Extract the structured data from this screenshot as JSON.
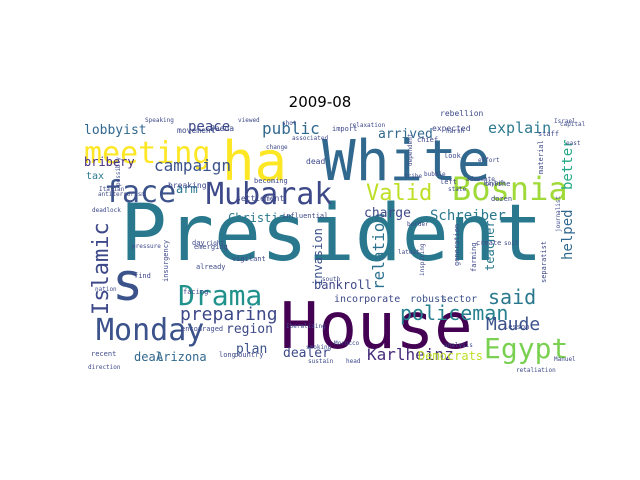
{
  "figure": {
    "title": "2009-08"
  },
  "word_cloud": {
    "colormap": "viridis",
    "words": [
      {
        "text": "President",
        "color": "#2a788e"
      },
      {
        "text": "House",
        "color": "#440154"
      },
      {
        "text": "White",
        "color": "#31688e"
      },
      {
        "text": "ha",
        "color": "#fde725"
      },
      {
        "text": "s",
        "color": "#3b528b"
      },
      {
        "text": "Bosnia",
        "color": "#a0da39"
      },
      {
        "text": "Mubarak",
        "color": "#3e4989"
      },
      {
        "text": "face",
        "color": "#3b528b"
      },
      {
        "text": "meeting",
        "color": "#fde725"
      },
      {
        "text": "Monday",
        "color": "#3b528b"
      },
      {
        "text": "Drama",
        "color": "#21918c"
      },
      {
        "text": "Egypt",
        "color": "#7ad151"
      },
      {
        "text": "Islamic",
        "color": "#3e4989"
      },
      {
        "text": "Valid",
        "color": "#bddf26"
      },
      {
        "text": "policeman",
        "color": "#26828e"
      },
      {
        "text": "said",
        "color": "#2a788e"
      },
      {
        "text": "Maude",
        "color": "#3b528b"
      },
      {
        "text": "preparing",
        "color": "#3e4989"
      },
      {
        "text": "Karlheinz",
        "color": "#472d7b"
      },
      {
        "text": "campaign",
        "color": "#3b528b"
      },
      {
        "text": "public",
        "color": "#31688e"
      },
      {
        "text": "explain",
        "color": "#2a788e"
      },
      {
        "text": "Schreiber",
        "color": "#2a788e"
      },
      {
        "text": "relation",
        "color": "#2c728e"
      },
      {
        "text": "better",
        "color": "#22a884"
      },
      {
        "text": "helped",
        "color": "#31688e"
      },
      {
        "text": "peace",
        "color": "#3e4989"
      },
      {
        "text": "arrived",
        "color": "#31688e"
      },
      {
        "text": "charge",
        "color": "#3e4989"
      },
      {
        "text": "lobbyist",
        "color": "#31688e"
      },
      {
        "text": "bribery",
        "color": "#472d7b"
      },
      {
        "text": "arm",
        "color": "#2a788e"
      },
      {
        "text": "Christian",
        "color": "#2a788e"
      },
      {
        "text": "bankroll",
        "color": "#3e4989"
      },
      {
        "text": "region",
        "color": "#3e4989"
      },
      {
        "text": "plan",
        "color": "#3b528b"
      },
      {
        "text": "dealer",
        "color": "#3e4989"
      },
      {
        "text": "deal",
        "color": "#31688e"
      },
      {
        "text": "Arizona",
        "color": "#31688e"
      },
      {
        "text": "Democrats",
        "color": "#bddf26"
      },
      {
        "text": "invasion",
        "color": "#3b528b"
      },
      {
        "text": "teacher",
        "color": "#2a788e"
      },
      {
        "text": "incorporate",
        "color": "#3e4989"
      },
      {
        "text": "robust",
        "color": "#3b528b"
      },
      {
        "text": "sector",
        "color": "#3b528b"
      },
      {
        "text": "tax",
        "color": "#2a788e"
      },
      {
        "text": "movement",
        "color": "#3e4989"
      },
      {
        "text": "rebellion",
        "color": "#3e4989"
      },
      {
        "text": "expected",
        "color": "#3e4989"
      },
      {
        "text": "Qaeda",
        "color": "#3e4989"
      },
      {
        "text": "settlement",
        "color": "#3e4989"
      },
      {
        "text": "breaking",
        "color": "#3e4989"
      },
      {
        "text": "dead",
        "color": "#3e4989"
      },
      {
        "text": "chief",
        "color": "#3e4989"
      },
      {
        "text": "left",
        "color": "#3e4989"
      },
      {
        "text": "look",
        "color": "#3e4989"
      },
      {
        "text": "online",
        "color": "#3e4989"
      },
      {
        "text": "dozen",
        "color": "#3e4989"
      },
      {
        "text": "create",
        "color": "#3e4989"
      },
      {
        "text": "lesson",
        "color": "#3e4989"
      },
      {
        "text": "emerging",
        "color": "#3e4989"
      },
      {
        "text": "already",
        "color": "#3e4989"
      },
      {
        "text": "find",
        "color": "#3e4989"
      },
      {
        "text": "day",
        "color": "#3e4989"
      },
      {
        "text": "encouraged",
        "color": "#3e4989"
      },
      {
        "text": "recent",
        "color": "#3e4989"
      },
      {
        "text": "long",
        "color": "#3e4989"
      },
      {
        "text": "country",
        "color": "#3e4989"
      },
      {
        "text": "insurgency",
        "color": "#3e4989"
      },
      {
        "text": "facing",
        "color": "#3e4989"
      },
      {
        "text": "vigilant",
        "color": "#3e4989"
      },
      {
        "text": "influential",
        "color": "#3e4989"
      },
      {
        "text": "becoming",
        "color": "#3e4989"
      },
      {
        "text": "generation",
        "color": "#3e4989"
      },
      {
        "text": "farming",
        "color": "#3e4989"
      },
      {
        "text": "separatist",
        "color": "#3e4989"
      },
      {
        "text": "material",
        "color": "#3e4989"
      },
      {
        "text": "staff",
        "color": "#3e4989"
      },
      {
        "text": "import",
        "color": "#3e4989"
      },
      {
        "text": "viewed",
        "color": "#3e4989"
      },
      {
        "text": "Speaking",
        "color": "#3e4989"
      },
      {
        "text": "possibly",
        "color": "#3e4989"
      },
      {
        "text": "deadlock",
        "color": "#3e4989"
      },
      {
        "text": "Morocco",
        "color": "#3e4989"
      },
      {
        "text": "nation",
        "color": "#3e4989"
      },
      {
        "text": "direction",
        "color": "#3e4989"
      },
      {
        "text": "sustain",
        "color": "#3e4989"
      },
      {
        "text": "head",
        "color": "#3e4989"
      },
      {
        "text": "Manuel",
        "color": "#3e4989"
      },
      {
        "text": "retaliation",
        "color": "#3e4989"
      },
      {
        "text": "analysis",
        "color": "#3e4989"
      },
      {
        "text": "inspiring",
        "color": "#3e4989"
      },
      {
        "text": "latest",
        "color": "#3e4989"
      },
      {
        "text": "south",
        "color": "#3e4989"
      },
      {
        "text": "soil",
        "color": "#3e4989"
      },
      {
        "text": "right",
        "color": "#3e4989"
      },
      {
        "text": "pressure",
        "color": "#3e4989"
      },
      {
        "text": "Israel",
        "color": "#3e4989"
      },
      {
        "text": "east",
        "color": "#3e4989"
      },
      {
        "text": "capital",
        "color": "#3e4989"
      },
      {
        "text": "Riyadh",
        "color": "#3e4989"
      },
      {
        "text": "border",
        "color": "#3e4989"
      },
      {
        "text": "effort",
        "color": "#3e4989"
      },
      {
        "text": "harsh",
        "color": "#3e4989"
      },
      {
        "text": "dependent",
        "color": "#3e4989"
      },
      {
        "text": "advocate",
        "color": "#3e4989"
      },
      {
        "text": "smoking",
        "color": "#3e4989"
      },
      {
        "text": "Iberalizing",
        "color": "#3e4989"
      },
      {
        "text": "antiterrorism",
        "color": "#3e4989"
      },
      {
        "text": "bubble",
        "color": "#3e4989"
      },
      {
        "text": "relaxation",
        "color": "#3e4989"
      },
      {
        "text": "associated",
        "color": "#3e4989"
      },
      {
        "text": "journalist",
        "color": "#3e4989"
      },
      {
        "text": "state",
        "color": "#3e4989"
      },
      {
        "text": "tribe",
        "color": "#3e4989"
      },
      {
        "text": "shot",
        "color": "#3e4989"
      },
      {
        "text": "change",
        "color": "#3e4989"
      },
      {
        "text": "Italian",
        "color": "#3e4989"
      },
      {
        "text": "lied",
        "color": "#3e4989"
      },
      {
        "text": "Ali",
        "color": "#3e4989"
      }
    ]
  }
}
